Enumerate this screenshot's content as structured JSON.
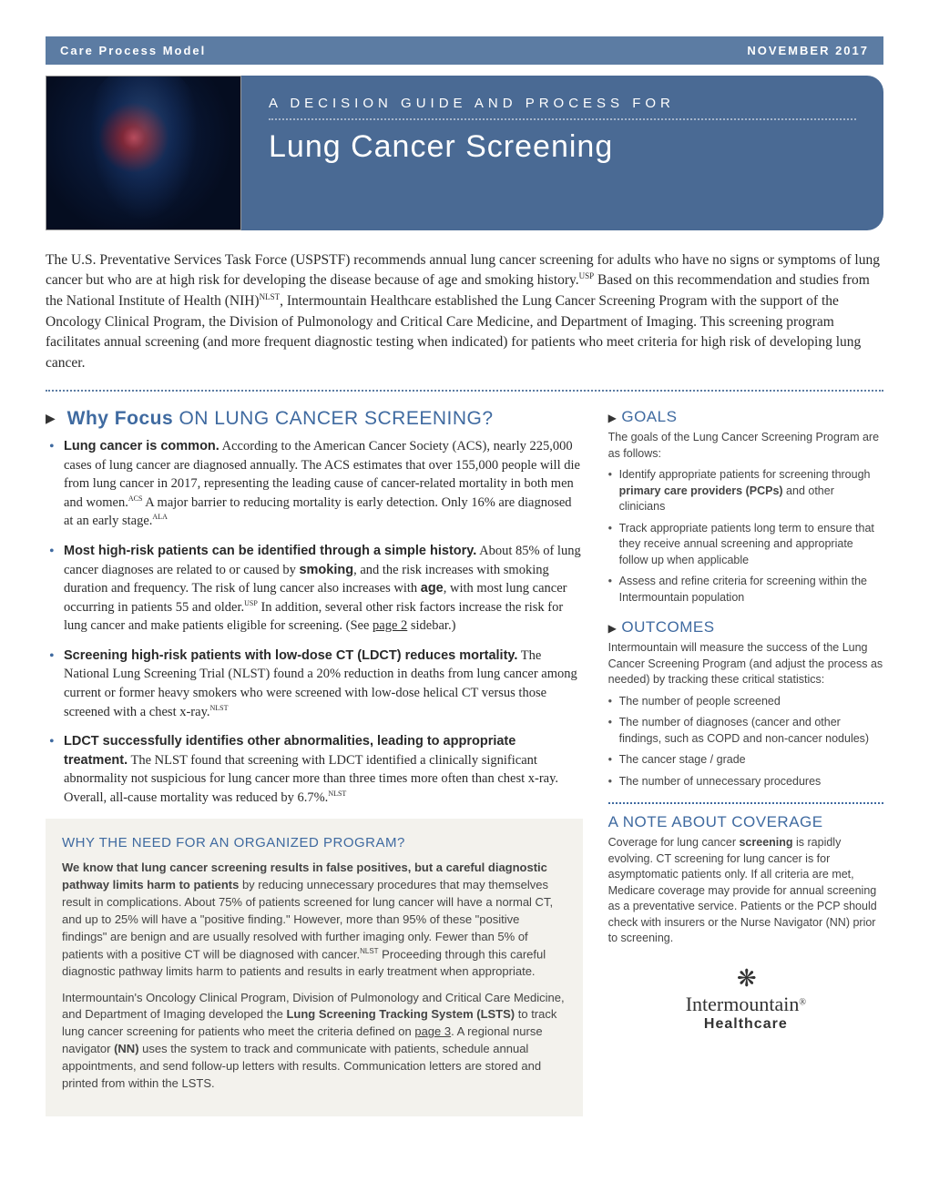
{
  "header": {
    "left": "Care Process Model",
    "right": "NOVEMBER 2017"
  },
  "hero": {
    "kicker": "A DECISION GUIDE AND PROCESS FOR",
    "title": "Lung Cancer Screening"
  },
  "intro": "The U.S. Preventative Services Task Force (USPSTF) recommends annual lung cancer screening for adults who have no signs or symptoms of lung cancer but who are at high risk for developing the disease because of age and smoking history.<sup>USP</sup> Based on this recommendation and studies from the National Institute of Health (NIH)<sup>NLST</sup>, Intermountain Healthcare established the Lung Cancer Screening Program with the support of the Oncology Clinical Program, the Division of Pulmonology and Critical Care Medicine, and Department of Imaging. This screening program facilitates annual screening (and more frequent diagnostic testing when indicated) for patients who meet criteria for high risk of developing lung cancer.",
  "whyFocus": {
    "heading_bold": "Why Focus",
    "heading_rest": " ON LUNG CANCER SCREENING?",
    "items": [
      "<strong>Lung cancer is common.</strong> According to the American Cancer Society (ACS), nearly 225,000 cases of lung cancer are diagnosed annually. The ACS estimates that over 155,000 people will die from lung cancer in 2017, representing the leading cause of cancer-related mortality in both men and women.<sup>ACS</sup> A major barrier to reducing mortality is early detection. Only 16% are diagnosed at an early stage.<sup>ALA</sup>",
      "<strong>Most high-risk patients can be identified through a simple history.</strong> About 85% of lung cancer diagnoses are related to or caused by <strong>smoking</strong>, and the risk increases with smoking duration and frequency. The risk of lung cancer also increases with <strong>age</strong>, with most lung cancer occurring in patients 55 and older.<sup>USP</sup> In addition, several other risk factors increase the risk for lung cancer and make patients eligible for screening. (See <span class='link'>page 2</span> sidebar.)",
      "<strong>Screening high-risk patients with low-dose CT (LDCT) reduces mortality.</strong> The National Lung Screening Trial (NLST) found a 20% reduction in deaths from lung cancer among current or former heavy smokers who were screened with low-dose helical CT versus those screened with a chest x-ray.<sup>NLST</sup>",
      "<strong>LDCT successfully identifies other abnormalities, leading to appropriate treatment.</strong> The NLST found that screening with LDCT identified a clinically significant abnormality not suspicious for lung cancer more than three times more often than chest x-ray. Overall, all-cause mortality was reduced by 6.7%.<sup>NLST</sup>"
    ]
  },
  "programBox": {
    "heading": "WHY THE NEED FOR AN ORGANIZED PROGRAM?",
    "p1": "<strong>We know that lung cancer screening results in false positives, but a careful diagnostic pathway limits harm to patients</strong> by reducing unnecessary procedures that may themselves result in complications. About 75% of patients screened for lung cancer will have a normal CT, and up to 25% will have a \"positive finding.\" However, more than 95% of these \"positive findings\" are benign and are usually resolved with further imaging only. Fewer than 5% of patients with a positive CT will be diagnosed with cancer.<sup>NLST</sup> Proceeding through this careful diagnostic pathway limits harm to patients and results in early treatment when appropriate.",
    "p2": "Intermountain's Oncology Clinical Program, Division of Pulmonology and Critical Care Medicine, and Department of Imaging developed the <strong>Lung Screening Tracking System (LSTS)</strong> to track lung cancer screening for patients who meet the criteria defined on <span class='link'>page 3</span>. A regional nurse navigator <strong>(NN)</strong> uses the system to track and communicate with patients, schedule annual appointments, and send follow-up letters with results. Communication letters are stored and printed from within the LSTS."
  },
  "goals": {
    "heading": "GOALS",
    "intro": "The goals of the Lung Cancer Screening Program are as follows:",
    "items": [
      "Identify appropriate patients for screening through <strong>primary care providers (PCPs)</strong> and other clinicians",
      "Track appropriate patients long term to ensure that they receive annual screening and appropriate follow up when applicable",
      "Assess and refine criteria for screening within the Intermountain population"
    ]
  },
  "outcomes": {
    "heading": "OUTCOMES",
    "intro": "Intermountain will measure the success of the Lung Cancer Screening Program (and adjust the process as needed) by tracking these critical statistics:",
    "items": [
      "The number of people screened",
      "The number of diagnoses (cancer and other findings, such as COPD and non-cancer nodules)",
      "The cancer stage / grade",
      "The number of unnecessary procedures"
    ]
  },
  "coverage": {
    "heading": "A NOTE ABOUT COVERAGE",
    "body": "Coverage for lung cancer <strong>screening</strong> is rapidly evolving. CT screening for lung cancer is for asymptomatic patients only. If all criteria are met, Medicare coverage may provide for annual screening as a preventative service. Patients or the PCP should check with insurers or the Nurse Navigator (NN) prior to screening."
  },
  "logo": {
    "name": "Intermountain",
    "sub": "Healthcare"
  },
  "colors": {
    "brand_blue": "#4a6a94",
    "heading_blue": "#3f6aa0",
    "bar_blue": "#5c7ca3",
    "box_bg": "#f3f2ed",
    "text": "#2a2a2a"
  }
}
